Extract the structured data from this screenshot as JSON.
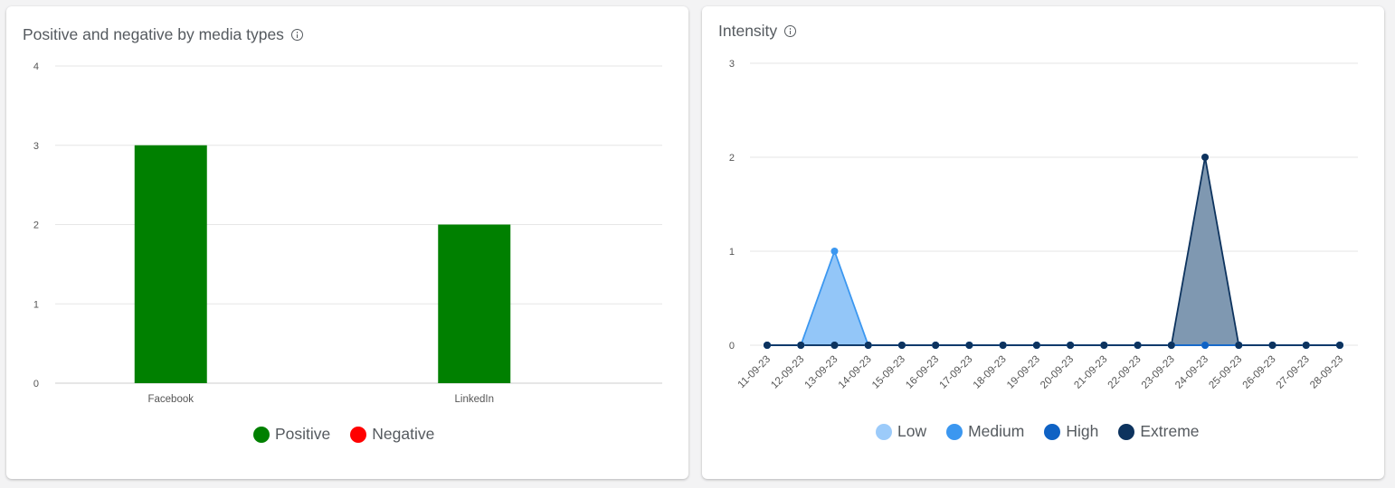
{
  "colors": {
    "positive": "#008000",
    "negative": "#ff0000",
    "low": "#9ccbfa",
    "medium": "#3b97f0",
    "high": "#0f62c4",
    "extreme": "#0d335e",
    "grid": "#e6e6e6",
    "axis_text": "#555555"
  },
  "icons": {
    "info": "info-icon"
  },
  "chart_data": [
    {
      "type": "bar",
      "title": "Positive and negative by media types",
      "categories": [
        "Facebook",
        "LinkedIn"
      ],
      "series": [
        {
          "name": "Positive",
          "values": [
            3,
            2
          ]
        },
        {
          "name": "Negative",
          "values": [
            0,
            0
          ]
        }
      ],
      "ylim": [
        0,
        4
      ],
      "yticks": [
        0,
        1,
        2,
        3,
        4
      ],
      "grid": true,
      "legend": "bottom-center"
    },
    {
      "type": "area",
      "title": "Intensity",
      "x": [
        "11-09-23",
        "12-09-23",
        "13-09-23",
        "14-09-23",
        "15-09-23",
        "16-09-23",
        "17-09-23",
        "18-09-23",
        "19-09-23",
        "20-09-23",
        "21-09-23",
        "22-09-23",
        "23-09-23",
        "24-09-23",
        "25-09-23",
        "26-09-23",
        "27-09-23",
        "28-09-23"
      ],
      "series": [
        {
          "name": "Low",
          "values": [
            0,
            0,
            0,
            0,
            0,
            0,
            0,
            0,
            0,
            0,
            0,
            0,
            0,
            0,
            0,
            0,
            0,
            0
          ]
        },
        {
          "name": "Medium",
          "values": [
            0,
            0,
            1,
            0,
            0,
            0,
            0,
            0,
            0,
            0,
            0,
            0,
            0,
            0,
            0,
            0,
            0,
            0
          ]
        },
        {
          "name": "High",
          "values": [
            0,
            0,
            0,
            0,
            0,
            0,
            0,
            0,
            0,
            0,
            0,
            0,
            0,
            0,
            0,
            0,
            0,
            0
          ]
        },
        {
          "name": "Extreme",
          "values": [
            0,
            0,
            0,
            0,
            0,
            0,
            0,
            0,
            0,
            0,
            0,
            0,
            0,
            2,
            0,
            0,
            0,
            0
          ]
        }
      ],
      "ylim": [
        0,
        3
      ],
      "yticks": [
        0,
        1,
        2,
        3
      ],
      "grid": true,
      "legend": "bottom-center"
    }
  ]
}
